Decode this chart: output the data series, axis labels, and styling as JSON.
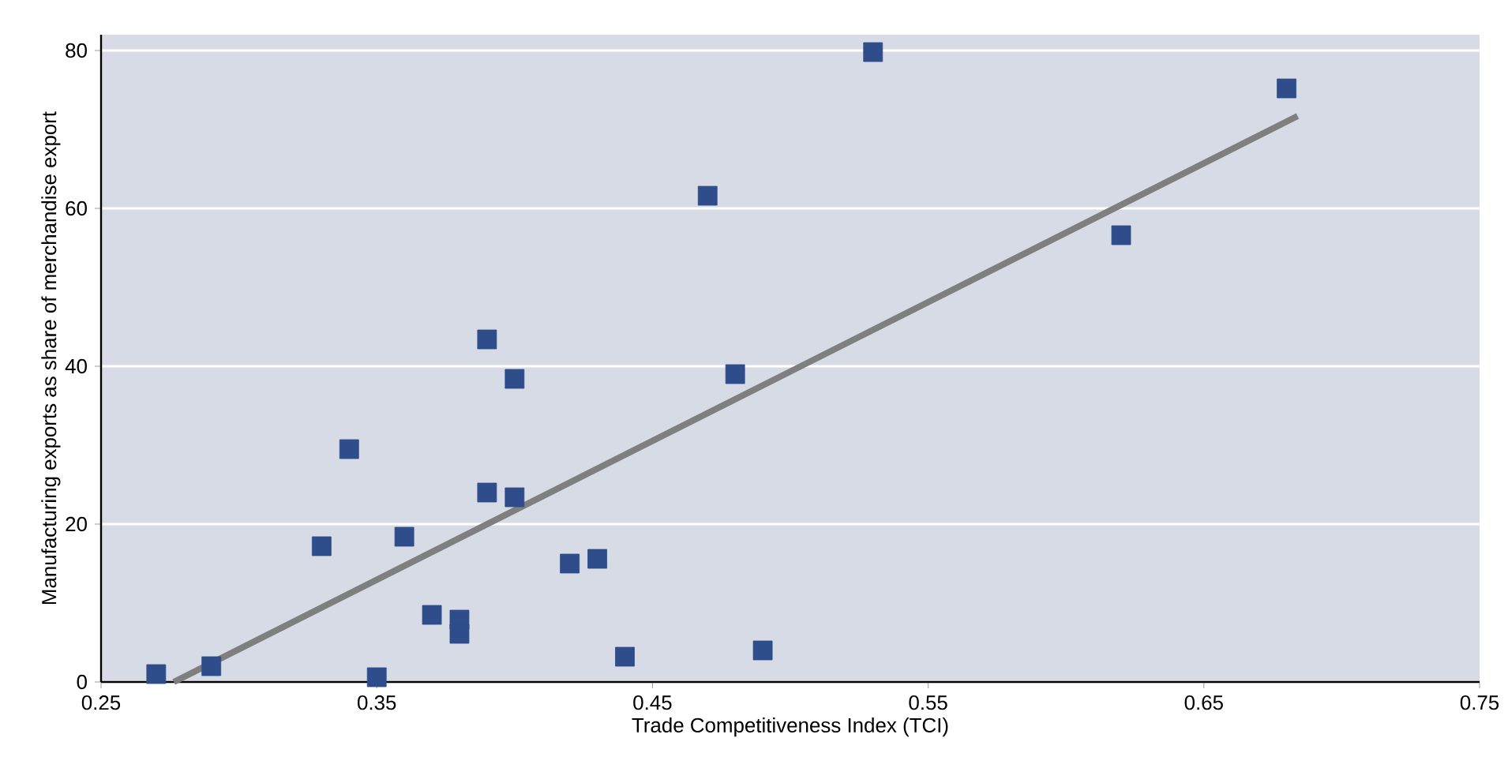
{
  "chart_data": {
    "type": "scatter",
    "xlabel": "Trade Competitiveness Index (TCI)",
    "ylabel": "Manufacturing exports as share of merchandise export",
    "xlim": [
      0.25,
      0.75
    ],
    "ylim": [
      0,
      82
    ],
    "xticks": [
      0.25,
      0.35,
      0.45,
      0.55,
      0.65,
      0.75
    ],
    "yticks": [
      0,
      20,
      40,
      60,
      80
    ],
    "grid": "y",
    "series": [
      {
        "marker": "square",
        "color": "#2e4d8a",
        "x": [
          0.27,
          0.29,
          0.35,
          0.33,
          0.34,
          0.36,
          0.37,
          0.38,
          0.38,
          0.39,
          0.39,
          0.4,
          0.4,
          0.42,
          0.43,
          0.44,
          0.47,
          0.48,
          0.49,
          0.53,
          0.62,
          0.68
        ],
        "values": [
          1.0,
          2.0,
          0.6,
          17.2,
          29.5,
          18.4,
          8.5,
          7.9,
          6.1,
          24.0,
          43.4,
          38.4,
          23.4,
          15.0,
          15.6,
          3.2,
          61.6,
          39.0,
          4.0,
          79.8,
          56.6,
          75.2
        ]
      },
      {
        "type": "line",
        "marker": "none",
        "color": "#7f7f7f",
        "x": [
          0.2764,
          0.684
        ],
        "values": [
          0,
          71.7
        ]
      }
    ]
  }
}
